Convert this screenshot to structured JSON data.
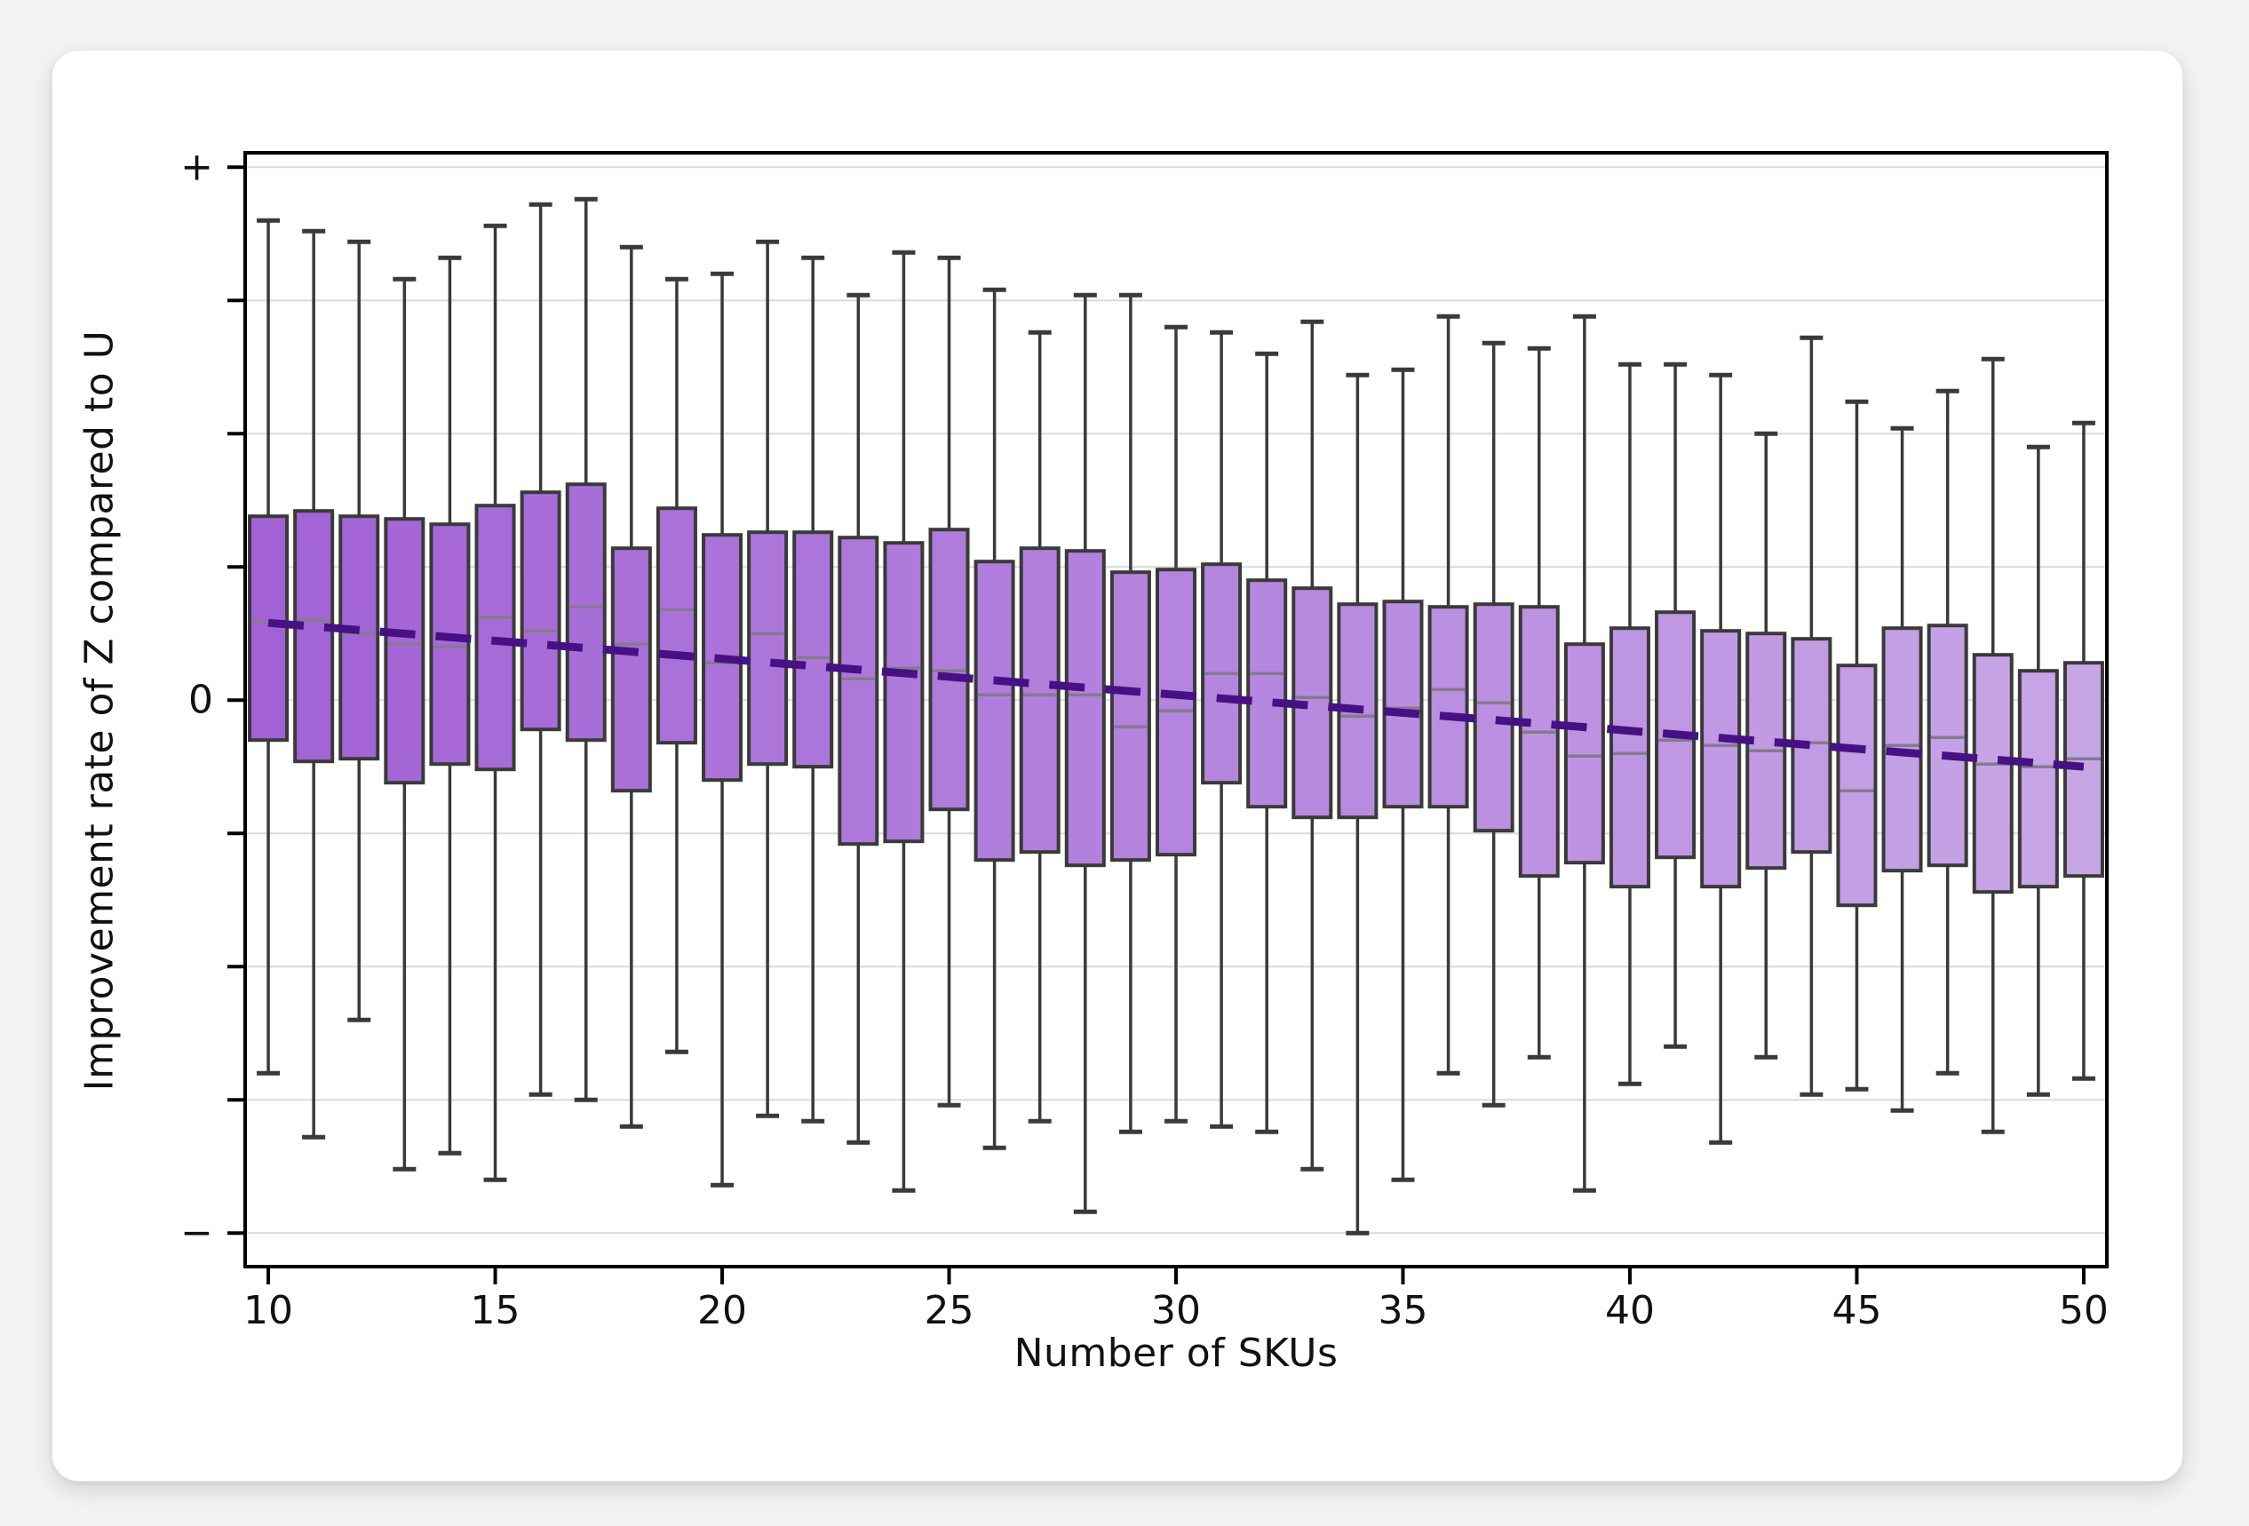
{
  "page": {
    "background": "#f2f3f5"
  },
  "card": {
    "background": "#ffffff"
  },
  "chart_data": {
    "type": "box",
    "title": "",
    "xlabel": "Number of SKUs",
    "ylabel": "Improvement rate of Z compared to U",
    "xlim": [
      9.49,
      50.51
    ],
    "ylim": [
      -1.063,
      1.027
    ],
    "grid": true,
    "x_ticks": [
      10,
      15,
      20,
      25,
      30,
      35,
      40,
      45,
      50
    ],
    "y_ticks": [
      {
        "value": 1.0,
        "label": "+"
      },
      {
        "value": 0.75,
        "label": ""
      },
      {
        "value": 0.5,
        "label": ""
      },
      {
        "value": 0.25,
        "label": ""
      },
      {
        "value": 0.0,
        "label": "0"
      },
      {
        "value": -0.25,
        "label": ""
      },
      {
        "value": -0.5,
        "label": ""
      },
      {
        "value": -0.75,
        "label": ""
      },
      {
        "value": -1.0,
        "label": "−"
      }
    ],
    "boxes": [
      {
        "x": 10,
        "whisker_low": -0.7,
        "q1": -0.075,
        "median": 0.145,
        "q3": 0.345,
        "whisker_high": 0.9
      },
      {
        "x": 11,
        "whisker_low": -0.82,
        "q1": -0.115,
        "median": 0.15,
        "q3": 0.355,
        "whisker_high": 0.88
      },
      {
        "x": 12,
        "whisker_low": -0.6,
        "q1": -0.11,
        "median": 0.125,
        "q3": 0.345,
        "whisker_high": 0.86
      },
      {
        "x": 13,
        "whisker_low": -0.88,
        "q1": -0.155,
        "median": 0.105,
        "q3": 0.34,
        "whisker_high": 0.79
      },
      {
        "x": 14,
        "whisker_low": -0.85,
        "q1": -0.12,
        "median": 0.1,
        "q3": 0.33,
        "whisker_high": 0.83
      },
      {
        "x": 15,
        "whisker_low": -0.9,
        "q1": -0.13,
        "median": 0.155,
        "q3": 0.365,
        "whisker_high": 0.89
      },
      {
        "x": 16,
        "whisker_low": -0.74,
        "q1": -0.055,
        "median": 0.13,
        "q3": 0.39,
        "whisker_high": 0.93
      },
      {
        "x": 17,
        "whisker_low": -0.75,
        "q1": -0.075,
        "median": 0.175,
        "q3": 0.405,
        "whisker_high": 0.94
      },
      {
        "x": 18,
        "whisker_low": -0.8,
        "q1": -0.17,
        "median": 0.105,
        "q3": 0.285,
        "whisker_high": 0.85
      },
      {
        "x": 19,
        "whisker_low": -0.66,
        "q1": -0.08,
        "median": 0.17,
        "q3": 0.36,
        "whisker_high": 0.79
      },
      {
        "x": 20,
        "whisker_low": -0.91,
        "q1": -0.15,
        "median": 0.07,
        "q3": 0.31,
        "whisker_high": 0.8
      },
      {
        "x": 21,
        "whisker_low": -0.78,
        "q1": -0.12,
        "median": 0.125,
        "q3": 0.315,
        "whisker_high": 0.86
      },
      {
        "x": 22,
        "whisker_low": -0.79,
        "q1": -0.125,
        "median": 0.08,
        "q3": 0.315,
        "whisker_high": 0.83
      },
      {
        "x": 23,
        "whisker_low": -0.83,
        "q1": -0.27,
        "median": 0.04,
        "q3": 0.305,
        "whisker_high": 0.76
      },
      {
        "x": 24,
        "whisker_low": -0.92,
        "q1": -0.265,
        "median": 0.06,
        "q3": 0.295,
        "whisker_high": 0.84
      },
      {
        "x": 25,
        "whisker_low": -0.76,
        "q1": -0.205,
        "median": 0.055,
        "q3": 0.32,
        "whisker_high": 0.83
      },
      {
        "x": 26,
        "whisker_low": -0.84,
        "q1": -0.3,
        "median": 0.01,
        "q3": 0.26,
        "whisker_high": 0.77
      },
      {
        "x": 27,
        "whisker_low": -0.79,
        "q1": -0.285,
        "median": 0.01,
        "q3": 0.285,
        "whisker_high": 0.69
      },
      {
        "x": 28,
        "whisker_low": -0.96,
        "q1": -0.31,
        "median": 0.01,
        "q3": 0.28,
        "whisker_high": 0.76
      },
      {
        "x": 29,
        "whisker_low": -0.81,
        "q1": -0.3,
        "median": -0.05,
        "q3": 0.24,
        "whisker_high": 0.76
      },
      {
        "x": 30,
        "whisker_low": -0.79,
        "q1": -0.29,
        "median": -0.02,
        "q3": 0.245,
        "whisker_high": 0.7
      },
      {
        "x": 31,
        "whisker_low": -0.8,
        "q1": -0.155,
        "median": 0.05,
        "q3": 0.255,
        "whisker_high": 0.69
      },
      {
        "x": 32,
        "whisker_low": -0.81,
        "q1": -0.2,
        "median": 0.05,
        "q3": 0.225,
        "whisker_high": 0.65
      },
      {
        "x": 33,
        "whisker_low": -0.88,
        "q1": -0.22,
        "median": 0.005,
        "q3": 0.21,
        "whisker_high": 0.71
      },
      {
        "x": 34,
        "whisker_low": -1.0,
        "q1": -0.22,
        "median": -0.03,
        "q3": 0.18,
        "whisker_high": 0.61
      },
      {
        "x": 35,
        "whisker_low": -0.9,
        "q1": -0.2,
        "median": -0.015,
        "q3": 0.185,
        "whisker_high": 0.62
      },
      {
        "x": 36,
        "whisker_low": -0.7,
        "q1": -0.2,
        "median": 0.02,
        "q3": 0.175,
        "whisker_high": 0.72
      },
      {
        "x": 37,
        "whisker_low": -0.76,
        "q1": -0.245,
        "median": -0.005,
        "q3": 0.18,
        "whisker_high": 0.67
      },
      {
        "x": 38,
        "whisker_low": -0.67,
        "q1": -0.33,
        "median": -0.06,
        "q3": 0.175,
        "whisker_high": 0.66
      },
      {
        "x": 39,
        "whisker_low": -0.92,
        "q1": -0.305,
        "median": -0.105,
        "q3": 0.105,
        "whisker_high": 0.72
      },
      {
        "x": 40,
        "whisker_low": -0.72,
        "q1": -0.35,
        "median": -0.1,
        "q3": 0.135,
        "whisker_high": 0.63
      },
      {
        "x": 41,
        "whisker_low": -0.65,
        "q1": -0.295,
        "median": -0.075,
        "q3": 0.165,
        "whisker_high": 0.63
      },
      {
        "x": 42,
        "whisker_low": -0.83,
        "q1": -0.35,
        "median": -0.085,
        "q3": 0.13,
        "whisker_high": 0.61
      },
      {
        "x": 43,
        "whisker_low": -0.67,
        "q1": -0.315,
        "median": -0.095,
        "q3": 0.125,
        "whisker_high": 0.5
      },
      {
        "x": 44,
        "whisker_low": -0.74,
        "q1": -0.285,
        "median": -0.08,
        "q3": 0.115,
        "whisker_high": 0.68
      },
      {
        "x": 45,
        "whisker_low": -0.73,
        "q1": -0.385,
        "median": -0.17,
        "q3": 0.065,
        "whisker_high": 0.56
      },
      {
        "x": 46,
        "whisker_low": -0.77,
        "q1": -0.32,
        "median": -0.085,
        "q3": 0.135,
        "whisker_high": 0.51
      },
      {
        "x": 47,
        "whisker_low": -0.7,
        "q1": -0.31,
        "median": -0.07,
        "q3": 0.14,
        "whisker_high": 0.58
      },
      {
        "x": 48,
        "whisker_low": -0.81,
        "q1": -0.36,
        "median": -0.12,
        "q3": 0.085,
        "whisker_high": 0.64
      },
      {
        "x": 49,
        "whisker_low": -0.74,
        "q1": -0.35,
        "median": -0.125,
        "q3": 0.055,
        "whisker_high": 0.475
      },
      {
        "x": 50,
        "whisker_low": -0.71,
        "q1": -0.33,
        "median": -0.11,
        "q3": 0.07,
        "whisker_high": 0.52
      }
    ],
    "trend_line": {
      "style": "dashed",
      "x_start": 10,
      "y_start": 0.145,
      "x_end": 50,
      "y_end": -0.125
    },
    "legend": null,
    "colors": {
      "box_fill_start": "#a262d5",
      "box_fill_end": "#c7a6e6",
      "box_edge": "#3a3a3a",
      "whisker": "#3a3a3a",
      "median": "#857a90",
      "trend": "#471185",
      "grid": "#dadada",
      "spine": "#000000",
      "tick_label": "#111111"
    }
  }
}
